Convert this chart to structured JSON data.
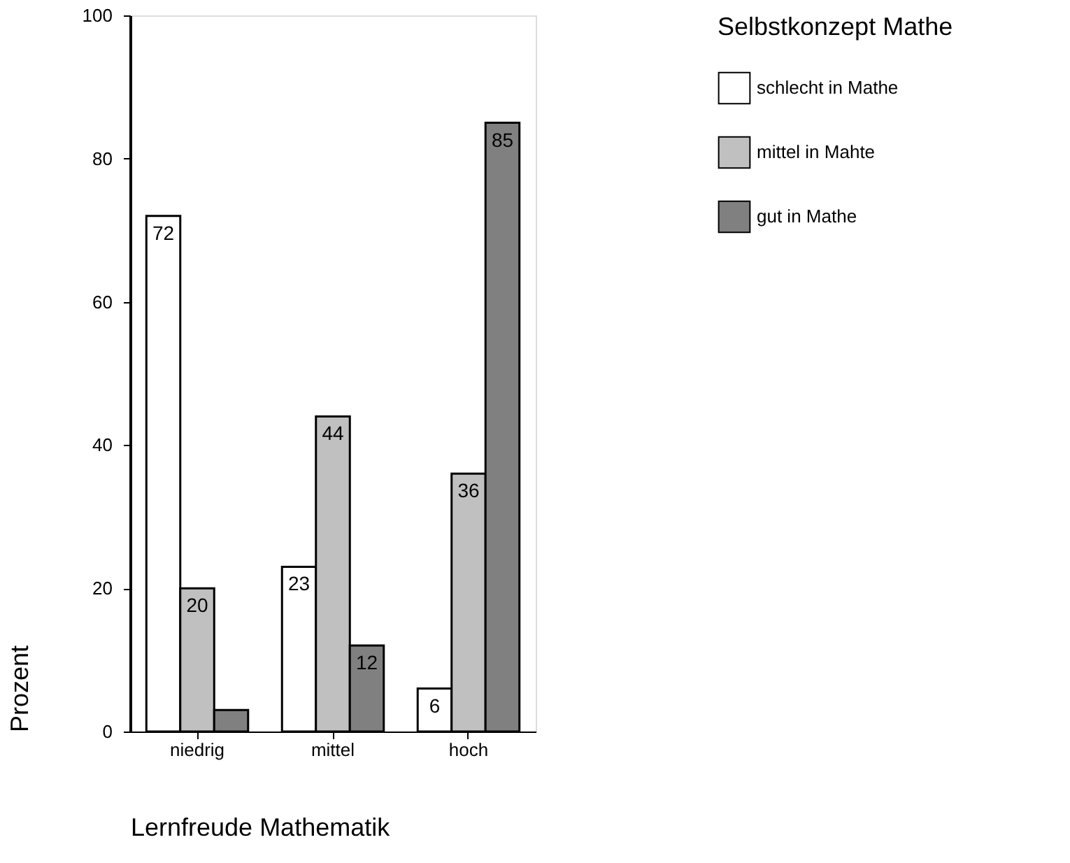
{
  "chart_data": {
    "type": "bar",
    "xlabel": "Lernfreude Mathematik",
    "ylabel": "Prozent",
    "legend_title": "Selbstkonzept Mathe",
    "categories": [
      "niedrig",
      "mittel",
      "hoch"
    ],
    "series": [
      {
        "name": "schlecht in Mathe",
        "color": "#ffffff",
        "values": [
          72,
          23,
          6
        ],
        "value_labels": [
          "72",
          "23",
          "6"
        ]
      },
      {
        "name": "mittel in Mahte",
        "color": "#c0c0c0",
        "values": [
          20,
          44,
          36
        ],
        "value_labels": [
          "20",
          "44",
          "36"
        ]
      },
      {
        "name": "gut in Mathe",
        "color": "#808080",
        "values": [
          3,
          12,
          85
        ],
        "value_labels": [
          null,
          "12",
          "85"
        ]
      }
    ],
    "ylim": [
      0,
      100
    ],
    "yticks": [
      0,
      20,
      40,
      60,
      80,
      100
    ],
    "grid": false,
    "legend": "right"
  }
}
